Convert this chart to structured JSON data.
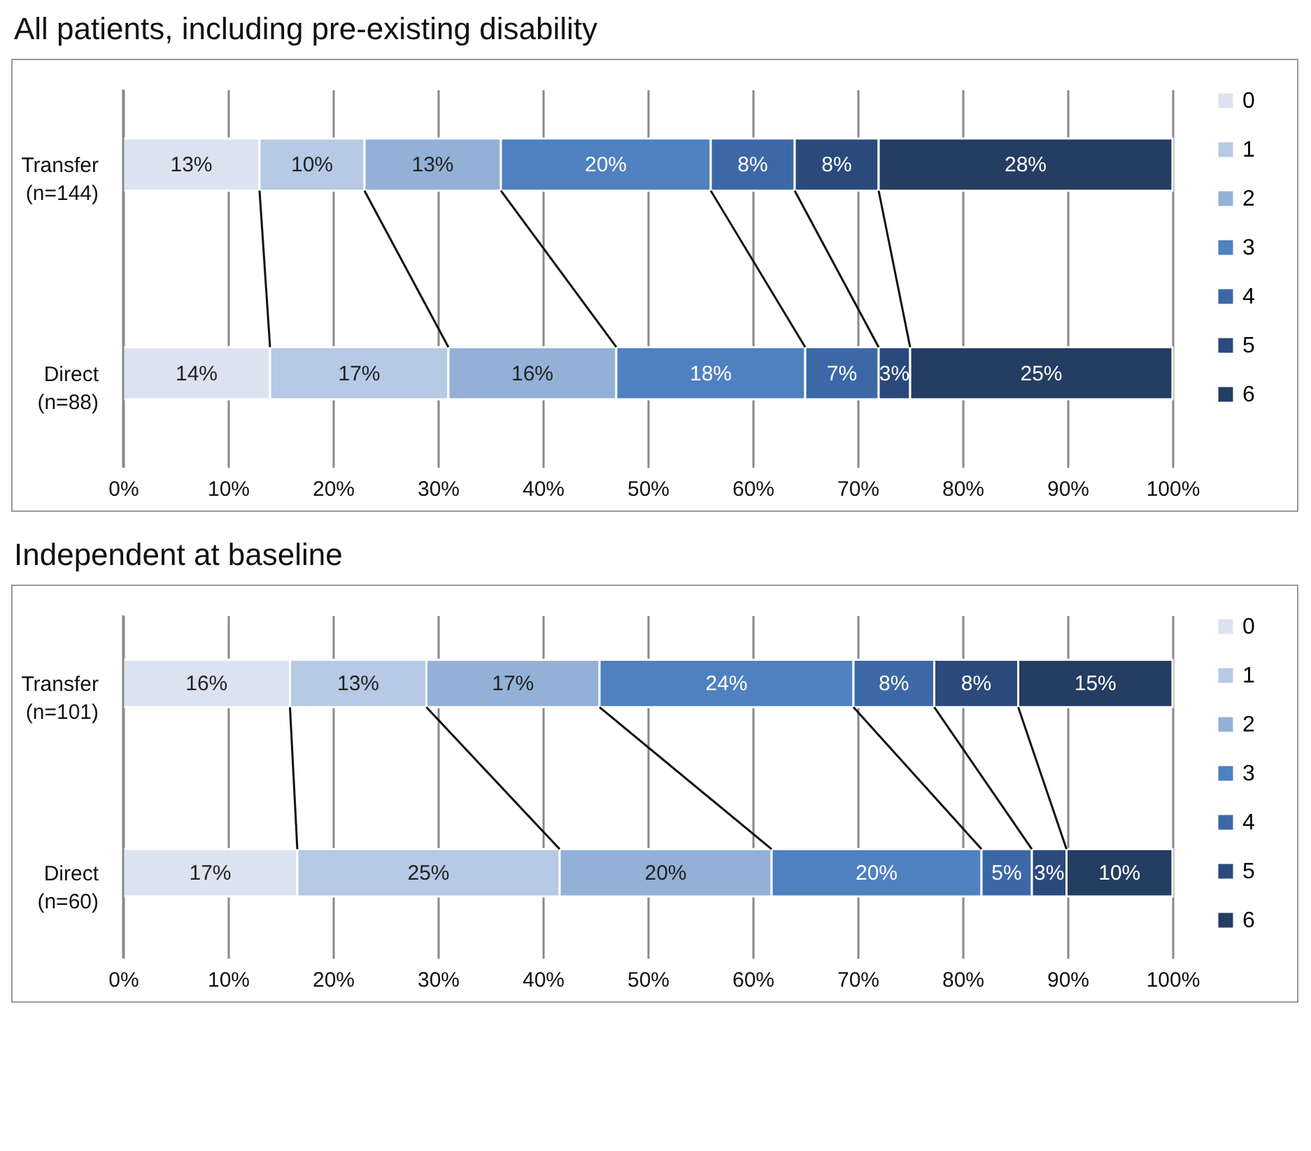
{
  "chart_data": [
    {
      "type": "bar",
      "orientation": "horizontal",
      "stacked": true,
      "title": "All patients, including pre-existing disability",
      "categories": [
        "Transfer\n(n=144)",
        "Direct\n(n=88)"
      ],
      "series": [
        {
          "name": "0",
          "color": "#dce3f0",
          "values": [
            13,
            14
          ],
          "value_labels": [
            "13%",
            "14%"
          ]
        },
        {
          "name": "1",
          "color": "#b6c9e5",
          "values": [
            10,
            17
          ],
          "value_labels": [
            "10%",
            "17%"
          ]
        },
        {
          "name": "2",
          "color": "#93b1d6",
          "values": [
            13,
            16
          ],
          "value_labels": [
            "13%",
            "16%"
          ]
        },
        {
          "name": "3",
          "color": "#4f80c0",
          "values": [
            20,
            18
          ],
          "value_labels": [
            "20%",
            "18%"
          ]
        },
        {
          "name": "4",
          "color": "#3d68a7",
          "values": [
            8,
            7
          ],
          "value_labels": [
            "8%",
            "7%"
          ]
        },
        {
          "name": "5",
          "color": "#2b4a7c",
          "values": [
            8,
            3
          ],
          "value_labels": [
            "8%",
            "3%"
          ]
        },
        {
          "name": "6",
          "color": "#243d62",
          "values": [
            28,
            25
          ],
          "value_labels": [
            "28%",
            "25%"
          ]
        }
      ],
      "xlim": [
        0,
        100
      ],
      "xticks": [
        {
          "value": 0,
          "label": "0%"
        },
        {
          "value": 10,
          "label": "10%"
        },
        {
          "value": 20,
          "label": "20%"
        },
        {
          "value": 30,
          "label": "30%"
        },
        {
          "value": 40,
          "label": "40%"
        },
        {
          "value": 50,
          "label": "50%"
        },
        {
          "value": 60,
          "label": "60%"
        },
        {
          "value": 70,
          "label": "70%"
        },
        {
          "value": 80,
          "label": "80%"
        },
        {
          "value": 90,
          "label": "90%"
        },
        {
          "value": 100,
          "label": "100%"
        }
      ],
      "grid": "x",
      "legend": "right"
    },
    {
      "type": "bar",
      "orientation": "horizontal",
      "stacked": true,
      "title": "Independent at baseline",
      "categories": [
        "Transfer\n(n=101)",
        "Direct\n(n=60)"
      ],
      "series": [
        {
          "name": "0",
          "color": "#dce3f0",
          "values": [
            15.9,
            16.6
          ],
          "value_labels": [
            "16%",
            "17%"
          ]
        },
        {
          "name": "1",
          "color": "#b6c9e5",
          "values": [
            13,
            25
          ],
          "value_labels": [
            "13%",
            "25%"
          ]
        },
        {
          "name": "2",
          "color": "#93b1d6",
          "values": [
            16.5,
            20.2
          ],
          "value_labels": [
            "17%",
            "20%"
          ]
        },
        {
          "name": "3",
          "color": "#4f80c0",
          "values": [
            24.2,
            20
          ],
          "value_labels": [
            "24%",
            "20%"
          ]
        },
        {
          "name": "4",
          "color": "#3d68a7",
          "values": [
            7.7,
            4.8
          ],
          "value_labels": [
            "8%",
            "5%"
          ]
        },
        {
          "name": "5",
          "color": "#2b4a7c",
          "values": [
            8,
            3.3
          ],
          "value_labels": [
            "8%",
            "3%"
          ]
        },
        {
          "name": "6",
          "color": "#243d62",
          "values": [
            14.7,
            10.1
          ],
          "value_labels": [
            "15%",
            "10%"
          ]
        }
      ],
      "xlim": [
        0,
        100
      ],
      "xticks": [
        {
          "value": 0,
          "label": "0%"
        },
        {
          "value": 10,
          "label": "10%"
        },
        {
          "value": 20,
          "label": "20%"
        },
        {
          "value": 30,
          "label": "30%"
        },
        {
          "value": 40,
          "label": "40%"
        },
        {
          "value": 50,
          "label": "50%"
        },
        {
          "value": 60,
          "label": "60%"
        },
        {
          "value": 70,
          "label": "70%"
        },
        {
          "value": 80,
          "label": "80%"
        },
        {
          "value": 90,
          "label": "90%"
        },
        {
          "value": 100,
          "label": "100%"
        }
      ],
      "grid": "x",
      "legend": "right"
    }
  ]
}
